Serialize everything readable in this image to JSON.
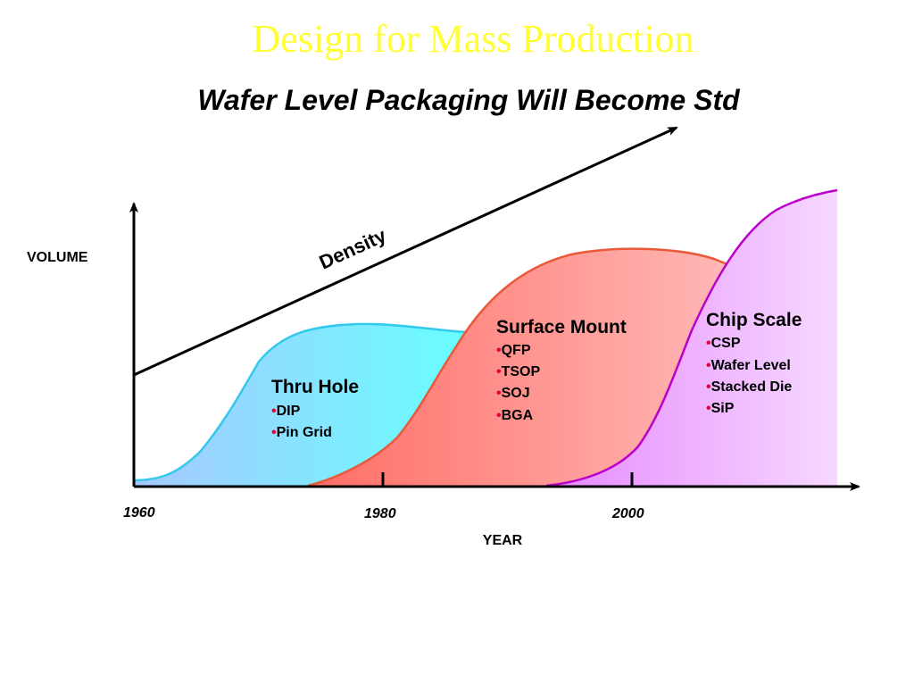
{
  "slide": {
    "title": "Design for Mass Production",
    "subtitle": "Wafer Level Packaging Will Become Std"
  },
  "axes": {
    "y_label": "VOLUME",
    "x_label": "YEAR",
    "years": [
      "1960",
      "1980",
      "2000"
    ]
  },
  "density_label": "Density",
  "groups": [
    {
      "title": "Thru Hole",
      "color": "#5ae8f5",
      "items": [
        "DIP",
        "Pin Grid"
      ]
    },
    {
      "title": "Surface Mount",
      "color": "#ff8f86",
      "items": [
        "QFP",
        "TSOP",
        "SOJ",
        "BGA"
      ]
    },
    {
      "title": "Chip Scale",
      "color": "#dd88ff",
      "items": [
        "CSP",
        "Wafer Level",
        "Stacked Die",
        "SiP"
      ]
    }
  ]
}
